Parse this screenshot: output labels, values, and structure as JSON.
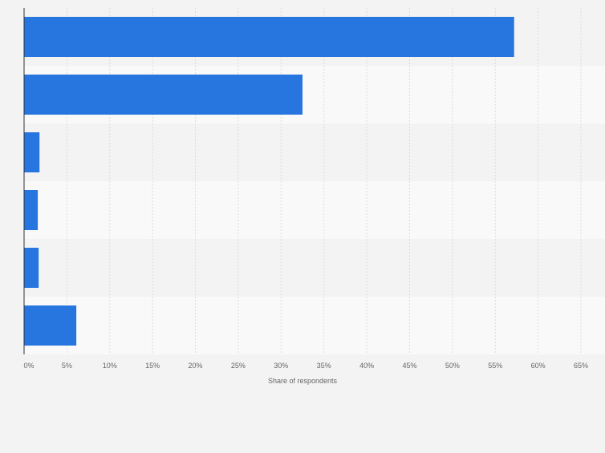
{
  "colors": {
    "bar": "#2775de",
    "band_light": "#f9f9f9",
    "band_dark": "#f3f3f3",
    "grid": "#dcdcdc",
    "axis": "#333333",
    "tick_text": "#666666"
  },
  "chart_data": {
    "type": "bar",
    "orientation": "horizontal",
    "categories": [
      "",
      "",
      "",
      "",
      "",
      ""
    ],
    "values": [
      57.2,
      32.5,
      1.8,
      1.6,
      1.7,
      6.1
    ],
    "xlim": [
      0,
      65
    ],
    "xticks": [
      0,
      5,
      10,
      15,
      20,
      25,
      30,
      35,
      40,
      45,
      50,
      55,
      60,
      65
    ],
    "xticklabels": [
      "0%",
      "5%",
      "10%",
      "15%",
      "20%",
      "25%",
      "30%",
      "35%",
      "40%",
      "45%",
      "50%",
      "55%",
      "60%",
      "65%"
    ],
    "xlabel": "Share of respondents",
    "ylabel": "",
    "title": "",
    "grid": true,
    "legend": "none"
  }
}
